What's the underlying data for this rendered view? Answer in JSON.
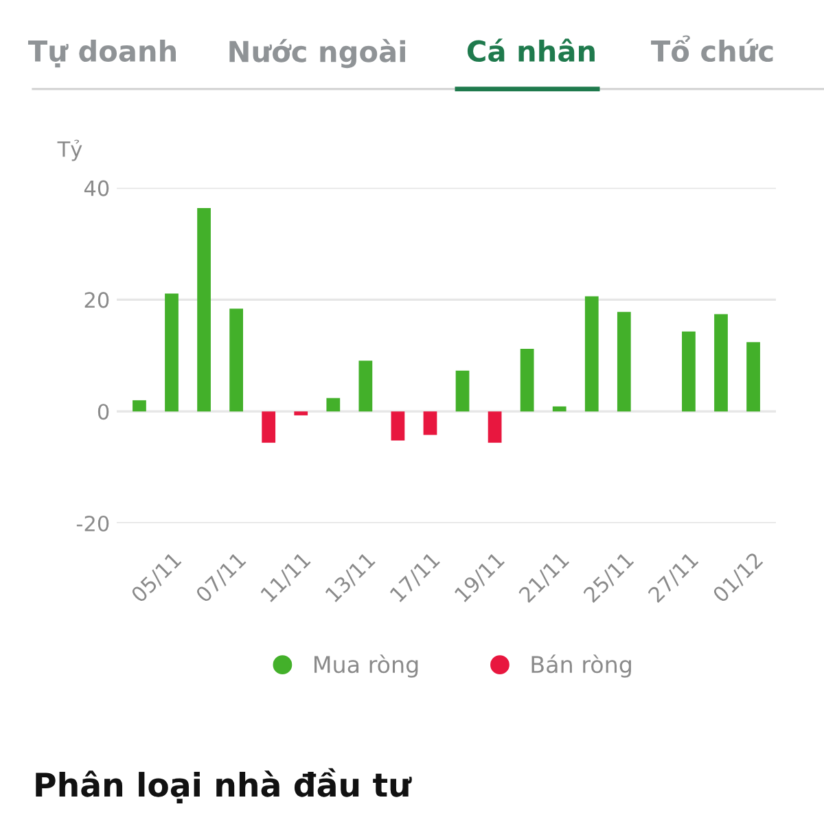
{
  "chart_data": {
    "type": "bar",
    "annotations": [
      "Tự doanh",
      "Nước ngoài",
      "Cá nhân",
      "Tổ chức",
      "Phân loại nhà đầu tư"
    ],
    "ylabel": "Tỷ",
    "categories": [
      null,
      "05/11",
      null,
      "07/11",
      null,
      "11/11",
      null,
      "13/11",
      null,
      "17/11",
      null,
      "19/11",
      null,
      "21/11",
      null,
      "25/11",
      null,
      "27/11",
      null,
      "01/12"
    ],
    "series": [
      {
        "name": "Mua ròng",
        "color": "#43b02a",
        "values": [
          2.0,
          21.1,
          36.4,
          18.4,
          null,
          null,
          2.4,
          9.1,
          null,
          null,
          7.3,
          null,
          11.2,
          0.9,
          20.6,
          17.8,
          0,
          14.3,
          17.4,
          12.4
        ]
      },
      {
        "name": "Bán ròng",
        "color": "#e8173f",
        "values": [
          null,
          null,
          null,
          null,
          -5.6,
          -0.7,
          null,
          null,
          -5.2,
          -4.2,
          null,
          -5.6,
          null,
          null,
          null,
          null,
          null,
          null,
          null,
          null
        ]
      }
    ],
    "ylim": [
      -20,
      40
    ],
    "yticks": [
      -20,
      0,
      20,
      40
    ],
    "grid": "y",
    "legend": "bottom"
  }
}
